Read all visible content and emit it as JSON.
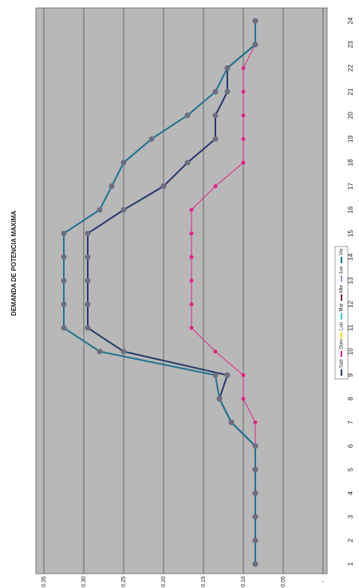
{
  "chart_data": {
    "type": "line",
    "title": "DEMANDA DE POTENCIA MAXIMA",
    "categories": [
      "1",
      "2",
      "3",
      "4",
      "5",
      "6",
      "7",
      "8",
      "9",
      "10",
      "11",
      "12",
      "13",
      "14",
      "15",
      "16",
      "17",
      "18",
      "19",
      "20",
      "21",
      "22",
      "23",
      "24"
    ],
    "series": [
      {
        "name": "Sab",
        "color": "#243a6b",
        "values": [
          0.085,
          0.085,
          0.085,
          0.085,
          0.085,
          0.085,
          0.115,
          0.13,
          0.12,
          0.25,
          0.295,
          0.295,
          0.295,
          0.295,
          0.295,
          0.25,
          0.2,
          0.17,
          0.135,
          0.135,
          0.12,
          0.12,
          0.085,
          0.085
        ]
      },
      {
        "name": "Dom",
        "color": "#e0258a",
        "values": [
          0.085,
          0.085,
          0.085,
          0.085,
          0.085,
          0.085,
          0.085,
          0.1,
          0.1,
          0.135,
          0.165,
          0.165,
          0.165,
          0.165,
          0.165,
          0.165,
          0.135,
          0.1,
          0.1,
          0.1,
          0.1,
          0.1,
          0.085,
          0.085
        ]
      },
      {
        "name": "Lun",
        "color": "#f2e600",
        "values": [
          null,
          null,
          null,
          null,
          null,
          null,
          null,
          null,
          null,
          null,
          null,
          null,
          null,
          null,
          null,
          null,
          null,
          null,
          null,
          null,
          null,
          null,
          null,
          null
        ]
      },
      {
        "name": "Mar",
        "color": "#33cccc",
        "values": [
          null,
          null,
          null,
          null,
          null,
          null,
          null,
          null,
          null,
          null,
          null,
          null,
          null,
          null,
          null,
          null,
          null,
          null,
          null,
          null,
          null,
          null,
          null,
          null
        ]
      },
      {
        "name": "Mie",
        "color": "#7a1f3d",
        "values": [
          null,
          null,
          null,
          null,
          null,
          null,
          null,
          null,
          null,
          null,
          null,
          null,
          null,
          null,
          null,
          null,
          null,
          null,
          null,
          null,
          null,
          null,
          null,
          null
        ]
      },
      {
        "name": "Jue",
        "color": "#9999cc",
        "values": [
          null,
          null,
          null,
          null,
          null,
          null,
          null,
          null,
          null,
          null,
          null,
          null,
          null,
          null,
          null,
          null,
          null,
          null,
          null,
          null,
          null,
          null,
          null,
          null
        ]
      },
      {
        "name": "Vie",
        "color": "#1f7391",
        "values": [
          0.085,
          0.085,
          0.085,
          0.085,
          0.085,
          0.085,
          0.115,
          0.13,
          0.135,
          0.28,
          0.325,
          0.325,
          0.325,
          0.325,
          0.325,
          0.28,
          0.265,
          0.25,
          0.215,
          0.17,
          0.135,
          0.12,
          0.085,
          0.085
        ]
      }
    ],
    "ylim": [
      0,
      0.35
    ],
    "yticks": [
      {
        "value": 0,
        "label": "-"
      },
      0.05,
      {
        "value": 0.1,
        "label": "0.10"
      },
      0.15,
      {
        "value": 0.2,
        "label": "0.20"
      },
      0.25,
      {
        "value": 0.3,
        "label": "0.30"
      },
      0.35
    ],
    "grid": true
  }
}
